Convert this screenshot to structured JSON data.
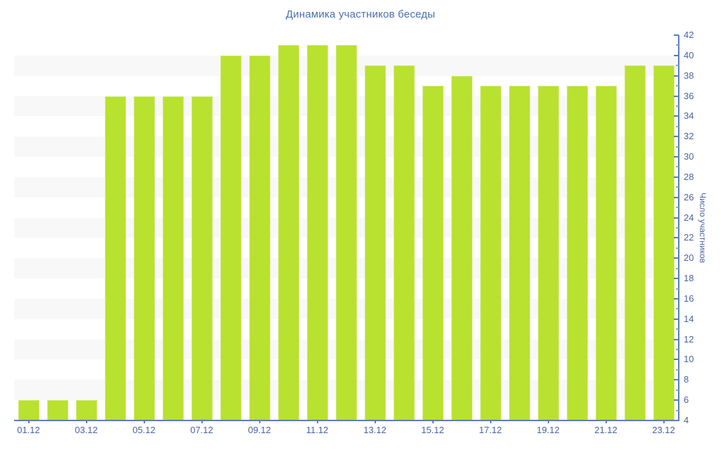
{
  "chart_data": {
    "type": "bar",
    "title": "Динамика участников беседы",
    "xlabel": "",
    "ylabel": "Число участников",
    "x_tick_labels": [
      "01.12",
      "03.12",
      "05.12",
      "07.12",
      "09.12",
      "11.12",
      "13.12",
      "15.12",
      "17.12",
      "19.12",
      "21.12",
      "23.12"
    ],
    "x_label_every": 2,
    "values": [
      6,
      6,
      6,
      36,
      36,
      36,
      36,
      40,
      40,
      41,
      41,
      41,
      39,
      39,
      37,
      38,
      37,
      37,
      37,
      37,
      37,
      39,
      39
    ],
    "ylim": [
      4,
      42
    ],
    "y_tick_step": 2,
    "y_minor_tick_step": 1,
    "grid": "alternating-horizontal-bands",
    "legend_position": "none",
    "colors": {
      "bar": "#b9e12f",
      "stripe_band": "#f8f8f8",
      "axis_line": "#5b7dbd",
      "minor_tick": "#93a4cd",
      "tick_label": "#4d639f",
      "title_text": "#4b70ae",
      "background": "#ffffff"
    }
  }
}
